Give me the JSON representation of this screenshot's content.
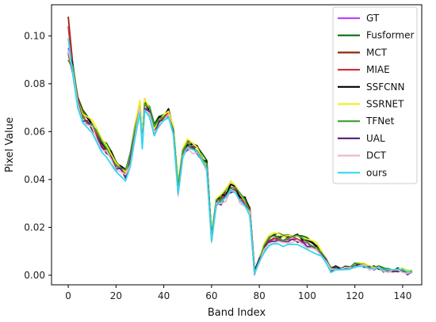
{
  "chart_data": {
    "type": "line",
    "xlabel": "Band Index",
    "ylabel": "Pixel Value",
    "xlim": [
      -7,
      148
    ],
    "ylim": [
      -0.004,
      0.113
    ],
    "x_ticks": [
      0,
      20,
      40,
      60,
      80,
      100,
      120,
      140
    ],
    "x_tick_labels": [
      "0",
      "20",
      "40",
      "60",
      "80",
      "100",
      "120",
      "140"
    ],
    "y_ticks": [
      0.0,
      0.02,
      0.04,
      0.06,
      0.08,
      0.1
    ],
    "y_tick_labels": [
      "0.00",
      "0.02",
      "0.04",
      "0.06",
      "0.08",
      "0.10"
    ],
    "grid": false,
    "legend_position": "top-right",
    "x": [
      0,
      2,
      4,
      6,
      8,
      10,
      12,
      14,
      16,
      18,
      20,
      22,
      24,
      26,
      28,
      30,
      31,
      32,
      34,
      36,
      38,
      40,
      42,
      44,
      46,
      48,
      50,
      52,
      54,
      56,
      58,
      60,
      62,
      64,
      66,
      68,
      70,
      72,
      74,
      76,
      78,
      80,
      82,
      84,
      86,
      88,
      90,
      92,
      94,
      96,
      98,
      100,
      102,
      104,
      106,
      108,
      110,
      112,
      114,
      116,
      118,
      120,
      122,
      124,
      126,
      128,
      130,
      132,
      134,
      136,
      138,
      140,
      142,
      144
    ],
    "base_values": [
      0.092,
      0.085,
      0.072,
      0.066,
      0.064,
      0.062,
      0.058,
      0.054,
      0.052,
      0.049,
      0.046,
      0.044,
      0.042,
      0.048,
      0.06,
      0.07,
      0.055,
      0.071,
      0.068,
      0.06,
      0.064,
      0.066,
      0.067,
      0.06,
      0.035,
      0.05,
      0.054,
      0.053,
      0.052,
      0.048,
      0.045,
      0.015,
      0.03,
      0.031,
      0.033,
      0.036,
      0.035,
      0.032,
      0.03,
      0.026,
      0.001,
      0.006,
      0.011,
      0.014,
      0.015,
      0.015,
      0.014,
      0.015,
      0.015,
      0.015,
      0.014,
      0.013,
      0.012,
      0.011,
      0.009,
      0.006,
      0.002,
      0.003,
      0.003,
      0.003,
      0.003,
      0.004,
      0.004,
      0.004,
      0.003,
      0.003,
      0.003,
      0.002,
      0.002,
      0.002,
      0.002,
      0.002,
      0.001,
      0.001
    ],
    "series": [
      {
        "name": "GT",
        "color": "#bf40ff",
        "offset": 0.0,
        "first": 0.095
      },
      {
        "name": "Fusformer",
        "color": "#0b6b0b",
        "offset": 0.002,
        "first": 0.09
      },
      {
        "name": "MCT",
        "color": "#8b2a0a",
        "offset": 0.001,
        "first": 0.108
      },
      {
        "name": "MIAE",
        "color": "#d03040",
        "offset": 0.0005,
        "first": 0.104
      },
      {
        "name": "SSFCNN",
        "color": "#000000",
        "offset": 0.0015,
        "first": 0.094
      },
      {
        "name": "SSRNET",
        "color": "#f0f020",
        "offset": 0.002,
        "first": 0.091
      },
      {
        "name": "TFNet",
        "color": "#3da030",
        "offset": 0.001,
        "first": 0.092
      },
      {
        "name": "UAL",
        "color": "#5a2a80",
        "offset": -0.0005,
        "first": 0.093
      },
      {
        "name": "DCT",
        "color": "#f0b8c8",
        "offset": -0.001,
        "first": 0.094
      },
      {
        "name": "ours",
        "color": "#30d8f0",
        "offset": -0.0015,
        "first": 0.099
      }
    ]
  }
}
